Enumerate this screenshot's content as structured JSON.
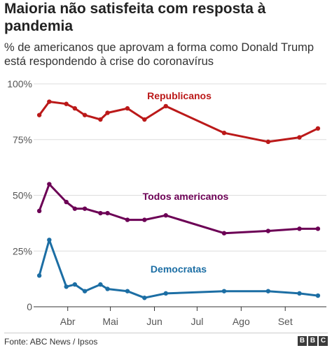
{
  "header": {
    "title": "Maioria não satisfeita com resposta à pandemia",
    "subtitle": "% de americanos que aprovam a forma como Donald Trump está respondendo à crise do coronavírus"
  },
  "footer": {
    "source": "Fonte: ABC News / Ipsos",
    "logo_letters": [
      "B",
      "B",
      "C"
    ]
  },
  "chart_data": {
    "type": "line",
    "title": "Maioria não satisfeita com resposta à pandemia",
    "subtitle": "% de americanos que aprovam a forma como Donald Trump está respondendo à crise do coronavírus",
    "xlabel": "",
    "ylabel": "",
    "x_ticks": [
      {
        "date": "2020-04-01",
        "label": "Abr"
      },
      {
        "date": "2020-05-01",
        "label": "Mai"
      },
      {
        "date": "2020-06-01",
        "label": "Jun"
      },
      {
        "date": "2020-07-01",
        "label": "Jul"
      },
      {
        "date": "2020-08-01",
        "label": "Ago"
      },
      {
        "date": "2020-09-01",
        "label": "Set"
      }
    ],
    "xlim": [
      "2020-03-08",
      "2020-09-27"
    ],
    "ylim": [
      0,
      100
    ],
    "y_ticks": [
      {
        "value": 0,
        "label": "0"
      },
      {
        "value": 25,
        "label": "25%"
      },
      {
        "value": 50,
        "label": "50%"
      },
      {
        "value": 75,
        "label": "75%"
      },
      {
        "value": 100,
        "label": "100%"
      }
    ],
    "grid": "horizontal",
    "legend": "inline labels",
    "x": [
      "2020-03-12",
      "2020-03-19",
      "2020-03-31",
      "2020-04-06",
      "2020-04-13",
      "2020-04-24",
      "2020-04-29",
      "2020-05-13",
      "2020-05-25",
      "2020-06-09",
      "2020-06-24",
      "2020-07-20",
      "2020-08-20",
      "2020-09-11",
      "2020-09-24"
    ],
    "series": [
      {
        "name": "Republicanos",
        "color": "#bb1919",
        "values": [
          86,
          92,
          91,
          89,
          86,
          84,
          87,
          89,
          84,
          90,
          null,
          78,
          74,
          76,
          80
        ]
      },
      {
        "name": "Todos americanos",
        "color": "#6c0055",
        "values": [
          43,
          55,
          47,
          44,
          44,
          42,
          42,
          39,
          39,
          41,
          null,
          33,
          34,
          35,
          35
        ]
      },
      {
        "name": "Democratas",
        "color": "#1c6ea4",
        "values": [
          14,
          30,
          9,
          10,
          7,
          10,
          8,
          7,
          4,
          6,
          null,
          7,
          7,
          6,
          5
        ]
      }
    ]
  }
}
